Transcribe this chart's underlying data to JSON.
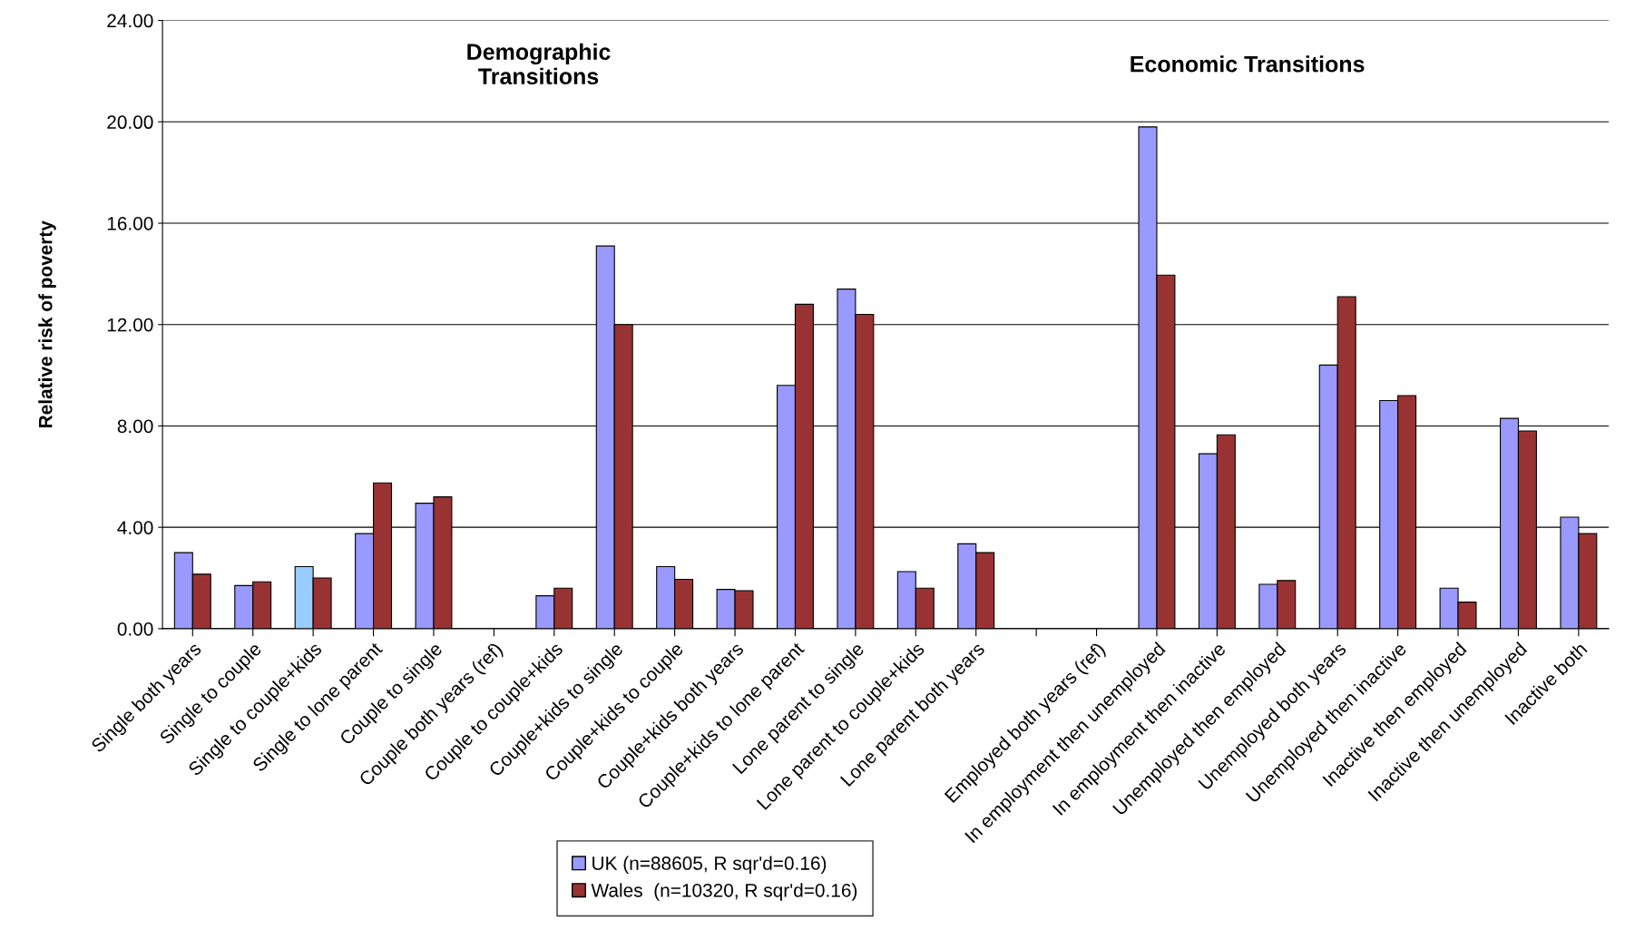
{
  "chart_data": {
    "type": "bar",
    "ylabel": "Relative risk of poverty",
    "categories": [
      "Single both years",
      "Single to couple",
      "Single to couple+kids",
      "Single to lone parent",
      "Couple to single",
      "Couple both years (ref)",
      "Couple to couple+kids",
      "Couple+kids to single",
      "Couple+kids to couple",
      "Couple+kids both years",
      "Couple+kids to lone parent",
      "Lone parent to single",
      "Lone parent to couple+kids",
      "Lone parent both years",
      null,
      "Employed both years (ref)",
      "In employment then unemployed",
      "In employment then inactive",
      "Unemployed then employed",
      "Unemployed both years",
      "Unemployed then inactive",
      "Inactive then employed",
      "Inactive then unemployed",
      "Inactive both"
    ],
    "series": [
      {
        "name": "UK (n=88605, R sqr'd=0.16)",
        "color": "#9999ff",
        "colors": [
          "#9999ff",
          "#9999ff",
          "#99ccff",
          "#9999ff",
          "#9999ff",
          "#9999ff",
          "#9999ff",
          "#9999ff",
          "#9999ff",
          "#9999ff",
          "#9999ff",
          "#9999ff",
          "#9999ff",
          "#9999ff",
          "#9999ff",
          "#9999ff",
          "#9999ff",
          "#9999ff",
          "#9999ff",
          "#9999ff",
          "#9999ff",
          "#9999ff",
          "#9999ff",
          "#9999ff"
        ],
        "values": [
          3.0,
          1.7,
          2.45,
          3.75,
          4.95,
          null,
          1.3,
          15.1,
          2.45,
          1.55,
          9.6,
          13.4,
          2.25,
          3.35,
          null,
          null,
          19.8,
          6.9,
          1.75,
          10.4,
          9.0,
          1.6,
          8.3,
          4.4
        ]
      },
      {
        "name": "Wales  (n=10320, R sqr'd=0.16)",
        "color": "#993333",
        "values": [
          2.15,
          1.85,
          2.0,
          5.75,
          5.2,
          null,
          1.6,
          12.0,
          1.95,
          1.5,
          12.8,
          12.4,
          1.6,
          3.0,
          null,
          null,
          13.95,
          7.65,
          1.9,
          13.1,
          9.2,
          1.05,
          7.8,
          3.75
        ]
      }
    ],
    "ylim": [
      0,
      24
    ],
    "yticks": [
      {
        "value": 0,
        "label": "0.00"
      },
      {
        "value": 4,
        "label": "4.00"
      },
      {
        "value": 8,
        "label": "8.00"
      },
      {
        "value": 12,
        "label": "12.00"
      },
      {
        "value": 16,
        "label": "16.00"
      },
      {
        "value": 20,
        "label": "20.00"
      },
      {
        "value": 24,
        "label": "24.00"
      }
    ],
    "grid": "y",
    "legend": "bottom",
    "annotations": [
      "Demographic\nTransitions",
      "Economic Transitions"
    ]
  }
}
